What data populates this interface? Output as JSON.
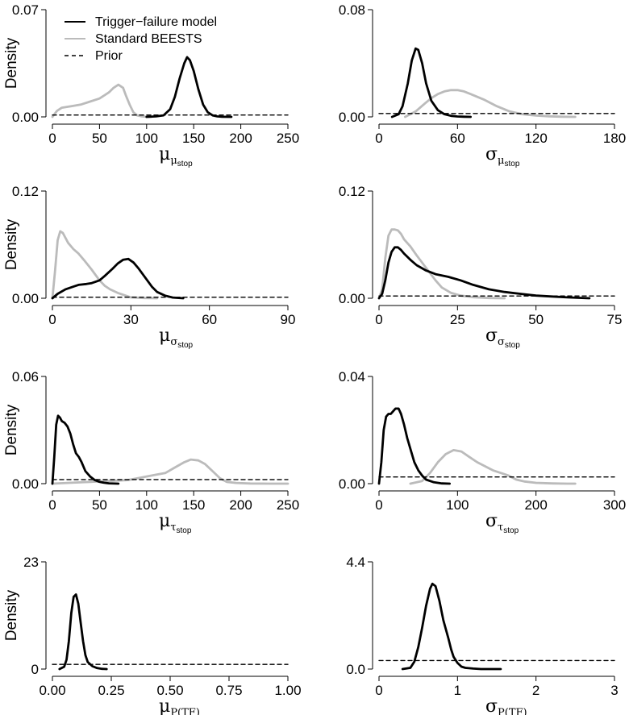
{
  "legend": {
    "position": "top-left of first panel",
    "entries": [
      {
        "label": "Trigger−failure model",
        "color": "#000000",
        "style": "solid"
      },
      {
        "label": "Standard BEESTS",
        "color": "#bbbbbb",
        "style": "solid"
      },
      {
        "label": "Prior",
        "color": "#000000",
        "style": "dashed"
      }
    ]
  },
  "chart_data": [
    {
      "type": "line",
      "ylabel": "Density",
      "xlabel": {
        "main": "μ",
        "sub": "μ",
        "subsub": "stop"
      },
      "xlim": [
        0,
        250
      ],
      "ylim": [
        0,
        0.07
      ],
      "xticks": [
        0,
        50,
        100,
        150,
        200,
        250
      ],
      "xtick_labels": [
        "0",
        "50",
        "100",
        "150",
        "200",
        "250"
      ],
      "yticks": [
        0,
        0.07
      ],
      "ytick_labels": [
        "0.00",
        "0.07"
      ],
      "series": [
        {
          "name": "Standard BEESTS",
          "color": "#bbbbbb",
          "x": [
            0,
            5,
            10,
            20,
            30,
            40,
            50,
            60,
            65,
            70,
            75,
            78,
            82,
            86,
            90,
            95,
            100,
            105
          ],
          "y": [
            0,
            0.004,
            0.006,
            0.007,
            0.008,
            0.01,
            0.012,
            0.016,
            0.019,
            0.021,
            0.019,
            0.014,
            0.008,
            0.003,
            0.001,
            0.0003,
            0.0001,
            0
          ]
        },
        {
          "name": "Trigger−failure model",
          "color": "#000000",
          "x": [
            100,
            110,
            118,
            125,
            130,
            135,
            140,
            143,
            146,
            150,
            155,
            160,
            165,
            170,
            175,
            180,
            190
          ],
          "y": [
            0,
            0.0003,
            0.001,
            0.005,
            0.013,
            0.025,
            0.035,
            0.039,
            0.037,
            0.03,
            0.018,
            0.008,
            0.003,
            0.001,
            0.0003,
            0.0001,
            0
          ]
        },
        {
          "name": "Prior",
          "color": "#000000",
          "dashed": true,
          "x": [
            0,
            250
          ],
          "y": [
            0.0012,
            0.0012
          ]
        }
      ]
    },
    {
      "type": "line",
      "ylabel": "",
      "xlabel": {
        "main": "σ",
        "sub": "μ",
        "subsub": "stop"
      },
      "xlim": [
        0,
        180
      ],
      "ylim": [
        0,
        0.08
      ],
      "xticks": [
        0,
        60,
        120,
        180
      ],
      "xtick_labels": [
        "0",
        "60",
        "120",
        "180"
      ],
      "yticks": [
        0,
        0.08
      ],
      "ytick_labels": [
        "0.00",
        "0.08"
      ],
      "series": [
        {
          "name": "Standard BEESTS",
          "color": "#bbbbbb",
          "x": [
            20,
            28,
            35,
            40,
            45,
            50,
            55,
            60,
            65,
            70,
            75,
            80,
            90,
            100,
            110,
            120,
            130,
            140,
            150
          ],
          "y": [
            0,
            0.004,
            0.01,
            0.014,
            0.017,
            0.019,
            0.02,
            0.02,
            0.019,
            0.017,
            0.015,
            0.013,
            0.008,
            0.004,
            0.002,
            0.001,
            0.0004,
            0.0001,
            0
          ]
        },
        {
          "name": "Trigger−failure model",
          "color": "#000000",
          "x": [
            10,
            15,
            18,
            22,
            25,
            28,
            30,
            33,
            36,
            40,
            45,
            50,
            55,
            60,
            65,
            70
          ],
          "y": [
            0,
            0.002,
            0.008,
            0.025,
            0.042,
            0.051,
            0.05,
            0.04,
            0.025,
            0.012,
            0.005,
            0.002,
            0.0008,
            0.0003,
            0.0001,
            0
          ]
        },
        {
          "name": "Prior",
          "color": "#000000",
          "dashed": true,
          "x": [
            0,
            180
          ],
          "y": [
            0.0025,
            0.0025
          ]
        }
      ]
    },
    {
      "type": "line",
      "ylabel": "Density",
      "xlabel": {
        "main": "μ",
        "sub": "σ",
        "subsub": "stop"
      },
      "xlim": [
        0,
        90
      ],
      "ylim": [
        0,
        0.12
      ],
      "xticks": [
        0,
        30,
        60,
        90
      ],
      "xtick_labels": [
        "0",
        "30",
        "60",
        "90"
      ],
      "yticks": [
        0,
        0.12
      ],
      "ytick_labels": [
        "0.00",
        "0.12"
      ],
      "series": [
        {
          "name": "Standard BEESTS",
          "color": "#bbbbbb",
          "x": [
            0,
            1,
            2,
            3,
            4,
            6,
            8,
            10,
            12,
            15,
            18,
            20,
            22,
            25,
            28,
            30,
            35,
            40
          ],
          "y": [
            0,
            0.03,
            0.065,
            0.075,
            0.073,
            0.062,
            0.055,
            0.05,
            0.043,
            0.032,
            0.02,
            0.014,
            0.01,
            0.006,
            0.003,
            0.001,
            0.0003,
            0
          ]
        },
        {
          "name": "Trigger−failure model",
          "color": "#000000",
          "x": [
            0,
            2,
            5,
            8,
            10,
            13,
            15,
            18,
            20,
            23,
            25,
            27,
            29,
            31,
            33,
            36,
            38,
            40,
            43,
            46,
            50
          ],
          "y": [
            0,
            0.005,
            0.01,
            0.013,
            0.015,
            0.016,
            0.017,
            0.02,
            0.025,
            0.033,
            0.039,
            0.043,
            0.044,
            0.04,
            0.033,
            0.021,
            0.013,
            0.007,
            0.003,
            0.0008,
            0
          ]
        },
        {
          "name": "Prior",
          "color": "#000000",
          "dashed": true,
          "x": [
            0,
            90
          ],
          "y": [
            0.0012,
            0.0012
          ]
        }
      ]
    },
    {
      "type": "line",
      "ylabel": "",
      "xlabel": {
        "main": "σ",
        "sub": "σ",
        "subsub": "stop"
      },
      "xlim": [
        0,
        75
      ],
      "ylim": [
        0,
        0.12
      ],
      "xticks": [
        0,
        25,
        50,
        75
      ],
      "xtick_labels": [
        "0",
        "25",
        "50",
        "75"
      ],
      "yticks": [
        0,
        0.12
      ],
      "ytick_labels": [
        "0.00",
        "0.12"
      ],
      "series": [
        {
          "name": "Standard BEESTS",
          "color": "#bbbbbb",
          "x": [
            0,
            1,
            2,
            3,
            4,
            5,
            6,
            7,
            8,
            10,
            12,
            15,
            18,
            20,
            23,
            26,
            30,
            35,
            40
          ],
          "y": [
            0,
            0.01,
            0.045,
            0.07,
            0.077,
            0.077,
            0.076,
            0.072,
            0.066,
            0.058,
            0.048,
            0.034,
            0.02,
            0.012,
            0.006,
            0.003,
            0.0012,
            0.0003,
            0
          ]
        },
        {
          "name": "Trigger−failure model",
          "color": "#000000",
          "x": [
            0,
            1,
            2,
            3,
            4,
            5,
            6,
            7,
            8,
            10,
            12,
            15,
            18,
            22,
            26,
            30,
            35,
            40,
            45,
            50,
            55,
            60,
            67
          ],
          "y": [
            0,
            0.005,
            0.02,
            0.04,
            0.052,
            0.057,
            0.057,
            0.054,
            0.05,
            0.043,
            0.037,
            0.031,
            0.027,
            0.024,
            0.02,
            0.015,
            0.01,
            0.007,
            0.005,
            0.003,
            0.002,
            0.001,
            0
          ]
        },
        {
          "name": "Prior",
          "color": "#000000",
          "dashed": true,
          "x": [
            0,
            75
          ],
          "y": [
            0.0025,
            0.0025
          ]
        }
      ]
    },
    {
      "type": "line",
      "ylabel": "Density",
      "xlabel": {
        "main": "μ",
        "sub": "τ",
        "subsub": "stop"
      },
      "xlim": [
        0,
        250
      ],
      "ylim": [
        0,
        0.06
      ],
      "xticks": [
        0,
        50,
        100,
        150,
        200,
        250
      ],
      "xtick_labels": [
        "0",
        "50",
        "100",
        "150",
        "200",
        "250"
      ],
      "yticks": [
        0,
        0.06
      ],
      "ytick_labels": [
        "0.00",
        "0.06"
      ],
      "series": [
        {
          "name": "Standard BEESTS",
          "color": "#bbbbbb",
          "x": [
            0,
            20,
            40,
            60,
            80,
            100,
            110,
            120,
            130,
            140,
            147,
            155,
            162,
            170,
            178,
            185,
            195,
            210,
            230,
            250
          ],
          "y": [
            0,
            0.0005,
            0.001,
            0.0015,
            0.002,
            0.004,
            0.005,
            0.006,
            0.009,
            0.012,
            0.0135,
            0.013,
            0.011,
            0.007,
            0.003,
            0.001,
            0.0004,
            0.0001,
            0,
            0
          ]
        },
        {
          "name": "Trigger−failure model",
          "color": "#000000",
          "x": [
            0,
            2,
            4,
            6,
            8,
            10,
            13,
            16,
            19,
            22,
            25,
            28,
            31,
            35,
            40,
            45,
            50,
            55,
            60,
            70
          ],
          "y": [
            0,
            0.015,
            0.033,
            0.038,
            0.037,
            0.035,
            0.034,
            0.032,
            0.028,
            0.022,
            0.017,
            0.015,
            0.012,
            0.007,
            0.004,
            0.002,
            0.001,
            0.0005,
            0.0002,
            0
          ]
        },
        {
          "name": "Prior",
          "color": "#000000",
          "dashed": true,
          "x": [
            0,
            250
          ],
          "y": [
            0.0023,
            0.0023
          ]
        }
      ]
    },
    {
      "type": "line",
      "ylabel": "",
      "xlabel": {
        "main": "σ",
        "sub": "τ",
        "subsub": "stop"
      },
      "xlim": [
        0,
        300
      ],
      "ylim": [
        0,
        0.04
      ],
      "xticks": [
        0,
        100,
        200,
        300
      ],
      "xtick_labels": [
        "0",
        "100",
        "200",
        "300"
      ],
      "yticks": [
        0,
        0.04
      ],
      "ytick_labels": [
        "0.00",
        "0.04"
      ],
      "series": [
        {
          "name": "Standard BEESTS",
          "color": "#bbbbbb",
          "x": [
            40,
            55,
            65,
            75,
            85,
            95,
            105,
            115,
            125,
            135,
            145,
            155,
            165,
            175,
            185,
            200,
            220,
            240,
            250
          ],
          "y": [
            0,
            0.001,
            0.004,
            0.008,
            0.011,
            0.0125,
            0.012,
            0.01,
            0.008,
            0.0065,
            0.005,
            0.004,
            0.003,
            0.0015,
            0.0008,
            0.0003,
            0.0001,
            0,
            0
          ]
        },
        {
          "name": "Trigger−failure model",
          "color": "#000000",
          "x": [
            0,
            3,
            6,
            9,
            12,
            15,
            18,
            21,
            25,
            28,
            32,
            36,
            40,
            45,
            50,
            55,
            60,
            70,
            80,
            90
          ],
          "y": [
            0,
            0.008,
            0.02,
            0.025,
            0.026,
            0.026,
            0.027,
            0.028,
            0.028,
            0.026,
            0.022,
            0.017,
            0.013,
            0.008,
            0.005,
            0.003,
            0.0015,
            0.0005,
            0.0001,
            0
          ]
        },
        {
          "name": "Prior",
          "color": "#000000",
          "dashed": true,
          "x": [
            0,
            300
          ],
          "y": [
            0.0025,
            0.0025
          ]
        }
      ]
    },
    {
      "type": "line",
      "ylabel": "Density",
      "xlabel": {
        "main": "μ",
        "sub": "P(TF)",
        "subsub": ""
      },
      "xlim": [
        0,
        1
      ],
      "ylim": [
        0,
        23
      ],
      "xticks": [
        0,
        0.25,
        0.5,
        0.75,
        1.0
      ],
      "xtick_labels": [
        "0.00",
        "0.25",
        "0.50",
        "0.75",
        "1.00"
      ],
      "yticks": [
        0,
        23
      ],
      "ytick_labels": [
        "0",
        "23"
      ],
      "series": [
        {
          "name": "Trigger−failure model",
          "color": "#000000",
          "x": [
            0.03,
            0.05,
            0.06,
            0.07,
            0.08,
            0.09,
            0.1,
            0.11,
            0.12,
            0.13,
            0.14,
            0.15,
            0.17,
            0.19,
            0.21,
            0.23
          ],
          "y": [
            0,
            0.5,
            2,
            6,
            12,
            15.5,
            16,
            14,
            10,
            6,
            3,
            1.5,
            0.6,
            0.2,
            0.05,
            0
          ]
        },
        {
          "name": "Prior",
          "color": "#000000",
          "dashed": true,
          "x": [
            0,
            1
          ],
          "y": [
            1.0,
            1.0
          ]
        }
      ]
    },
    {
      "type": "line",
      "ylabel": "",
      "xlabel": {
        "main": "σ",
        "sub": "P(TF)",
        "subsub": ""
      },
      "xlim": [
        0,
        3
      ],
      "ylim": [
        0,
        4.4
      ],
      "xticks": [
        0,
        1,
        2,
        3
      ],
      "xtick_labels": [
        "0",
        "1",
        "2",
        "3"
      ],
      "yticks": [
        0,
        4.4
      ],
      "ytick_labels": [
        "0.0",
        "4.4"
      ],
      "series": [
        {
          "name": "Trigger−failure model",
          "color": "#000000",
          "x": [
            0.3,
            0.4,
            0.45,
            0.5,
            0.55,
            0.6,
            0.65,
            0.68,
            0.72,
            0.77,
            0.82,
            0.88,
            0.92,
            0.95,
            1.0,
            1.05,
            1.1,
            1.2,
            1.3,
            1.55
          ],
          "y": [
            0,
            0.05,
            0.3,
            0.9,
            1.7,
            2.6,
            3.3,
            3.5,
            3.4,
            2.8,
            2.0,
            1.3,
            0.8,
            0.5,
            0.25,
            0.1,
            0.05,
            0.02,
            0,
            0
          ]
        },
        {
          "name": "Prior",
          "color": "#000000",
          "dashed": true,
          "x": [
            0,
            3
          ],
          "y": [
            0.35,
            0.35
          ]
        }
      ]
    }
  ]
}
